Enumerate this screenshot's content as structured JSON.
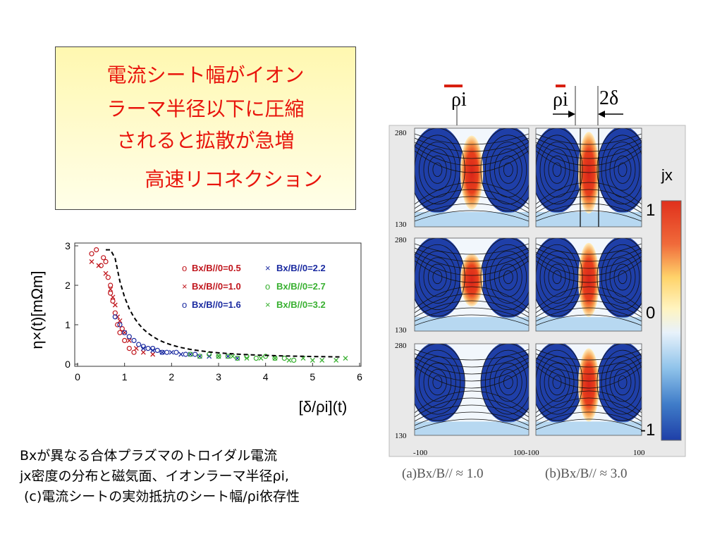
{
  "headline": {
    "lines": [
      "電流シート幅がイオン",
      "ラーマ半径以下に圧縮",
      "されると拡散が急増"
    ],
    "sub": "高速リコネクション"
  },
  "scatter": {
    "ylabel": "η×(t)[mΩm]",
    "xlabel": "[δ/ρi](t)",
    "legend": [
      {
        "marker": "o",
        "text": "Bx/B//0=0.5",
        "color": "#c0151c"
      },
      {
        "marker": "×",
        "text": "Bx/B//0=2.2",
        "color": "#1a2aa0"
      },
      {
        "marker": "×",
        "text": "Bx/B//0=1.0",
        "color": "#c0151c"
      },
      {
        "marker": "o",
        "text": "Bx/B//0=2.7",
        "color": "#38b030"
      },
      {
        "marker": "o",
        "text": "Bx/B//0=1.6",
        "color": "#1a2aa0"
      },
      {
        "marker": "×",
        "text": "Bx/B//0=3.2",
        "color": "#38b030"
      }
    ]
  },
  "chart_data": {
    "type": "scatter",
    "xlabel": "[δ/ρi](t)",
    "ylabel": "η×(t)[mΩm]",
    "xlim": [
      0,
      6
    ],
    "ylim": [
      0,
      3
    ],
    "xticks": [
      "0",
      "1",
      "2",
      "3",
      "4",
      "5",
      "6"
    ],
    "yticks": [
      "0",
      "1",
      "2",
      "3"
    ],
    "series": [
      {
        "name": "Bx/B//0=0.5",
        "marker": "o",
        "color": "#c0151c",
        "x": [
          0.3,
          0.4,
          0.5,
          0.6,
          0.65,
          0.7,
          0.75,
          0.8,
          0.85,
          0.9,
          1.0,
          1.1,
          1.2,
          0.55,
          0.7,
          0.95
        ],
        "y": [
          2.8,
          2.9,
          2.5,
          2.6,
          2.2,
          1.8,
          1.6,
          1.3,
          1.0,
          0.8,
          0.6,
          0.4,
          0.3,
          2.7,
          2.0,
          0.9
        ]
      },
      {
        "name": "Bx/B//0=1.0",
        "marker": "x",
        "color": "#c0151c",
        "x": [
          0.3,
          0.45,
          0.6,
          0.7,
          0.8,
          0.9,
          1.0,
          1.1,
          1.25,
          1.4,
          1.6,
          0.75,
          0.85
        ],
        "y": [
          2.6,
          2.5,
          2.3,
          1.9,
          1.5,
          1.1,
          0.8,
          0.6,
          0.4,
          0.3,
          0.25,
          1.7,
          1.2
        ]
      },
      {
        "name": "Bx/B//0=1.6",
        "marker": "o",
        "color": "#1a2aa0",
        "x": [
          0.8,
          0.9,
          1.0,
          1.1,
          1.2,
          1.3,
          1.4,
          1.5,
          1.7,
          1.9,
          2.1,
          2.3,
          2.5,
          1.6,
          1.8
        ],
        "y": [
          1.2,
          1.0,
          0.8,
          0.7,
          0.6,
          0.5,
          0.45,
          0.4,
          0.35,
          0.3,
          0.3,
          0.25,
          0.25,
          0.4,
          0.3
        ]
      },
      {
        "name": "Bx/B//0=2.2",
        "marker": "x",
        "color": "#1a2aa0",
        "x": [
          1.4,
          1.6,
          1.8,
          2.0,
          2.2,
          2.4,
          2.6,
          2.8,
          3.0,
          3.2,
          3.4
        ],
        "y": [
          0.4,
          0.35,
          0.3,
          0.3,
          0.25,
          0.25,
          0.2,
          0.2,
          0.2,
          0.2,
          0.15
        ]
      },
      {
        "name": "Bx/B//0=2.7",
        "marker": "o",
        "color": "#38b030",
        "x": [
          2.4,
          2.6,
          2.8,
          3.0,
          3.2,
          3.4,
          3.6,
          3.8,
          4.0,
          4.2,
          4.4,
          4.6
        ],
        "y": [
          0.25,
          0.2,
          0.25,
          0.2,
          0.2,
          0.15,
          0.2,
          0.15,
          0.2,
          0.15,
          0.15,
          0.1
        ]
      },
      {
        "name": "Bx/B//0=3.2",
        "marker": "x",
        "color": "#38b030",
        "x": [
          3.0,
          3.3,
          3.6,
          3.9,
          4.2,
          4.5,
          4.8,
          5.0,
          5.2,
          5.5,
          5.7
        ],
        "y": [
          0.2,
          0.2,
          0.15,
          0.15,
          0.15,
          0.1,
          0.15,
          0.1,
          0.1,
          0.1,
          0.15
        ]
      }
    ]
  },
  "caption": {
    "line1": "Bxが異なる合体プラズマのトロイダル電流",
    "line2": "jx密度の分布と磁気面、イオンラーマ半径ρi,",
    "line3": "(c)電流シートの実効抵抗のシート幅/ρi依存性"
  },
  "figure": {
    "rho_left": "ρi",
    "rho_right": "ρi",
    "two_delta": "2δ",
    "jx_label": "jx",
    "cbar_ticks": [
      "1",
      "0",
      "-1"
    ],
    "y_top": "280",
    "y_bottom": "130",
    "x_ticks_left": [
      "-100",
      "100"
    ],
    "x_ticks_right": [
      "-100",
      "100"
    ],
    "x_mid": "100-100",
    "label_a": "(a)Bx/B// ≈ 1.0",
    "label_b": "(b)Bx/B// ≈ 3.0",
    "colors": {
      "blue": "#1f3fa8",
      "light_blue": "#8fc3ea",
      "red": "#e0301c",
      "orange": "#f08030",
      "yellow": "#ffe98a"
    }
  }
}
